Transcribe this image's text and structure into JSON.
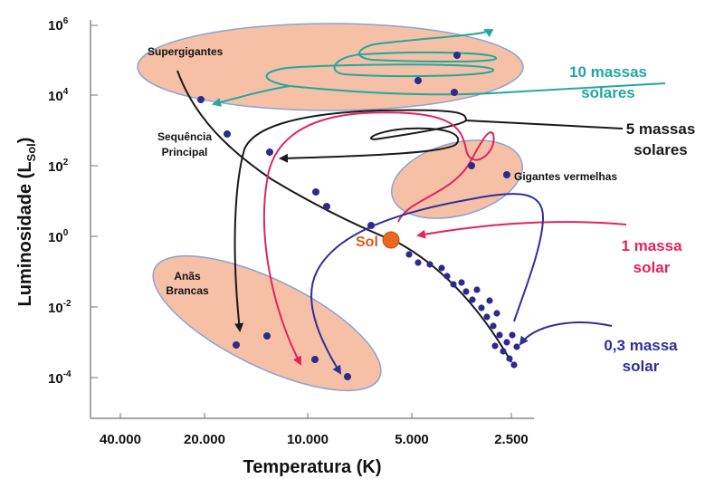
{
  "axes": {
    "x_label": "Temperatura (K)",
    "y_label_main": "Luminosidade (L",
    "y_label_sub": "Sol",
    "y_label_close": ")",
    "y_ticks": [
      {
        "base": "10",
        "exp": "6"
      },
      {
        "base": "10",
        "exp": "4"
      },
      {
        "base": "10",
        "exp": "2"
      },
      {
        "base": "10",
        "exp": "0"
      },
      {
        "base": "10",
        "exp": "-2"
      },
      {
        "base": "10",
        "exp": "-4"
      }
    ],
    "x_ticks": [
      "40.000",
      "20.000",
      "10.000",
      "5.000",
      "2.500"
    ]
  },
  "regions": {
    "supergiants": "Supergigantes",
    "main_sequence_line1": "Sequência",
    "main_sequence_line2": "Principal",
    "red_giants": "Gigantes vermelhas",
    "white_dwarfs_line1": "Anãs",
    "white_dwarfs_line2": "Brancas",
    "sun": "Sol"
  },
  "tracks": {
    "ten_mass_line1": "10 massas",
    "ten_mass_line2": "solares",
    "five_mass_line1": "5 massas",
    "five_mass_line2": "solares",
    "one_mass_line1": "1 massa",
    "one_mass_line2": "solar",
    "low_mass_line1": "0,3 massa",
    "low_mass_line2": "solar"
  },
  "colors": {
    "region_fill": "#f6c0a6",
    "region_stroke": "#8aa2d6",
    "star": "#2b2b8c",
    "sun": "#e86a1e",
    "ten_mass": "#20a8a0",
    "five_mass": "#1a1a1a",
    "one_mass": "#e0245e",
    "low_mass": "#2f2f9a"
  }
}
